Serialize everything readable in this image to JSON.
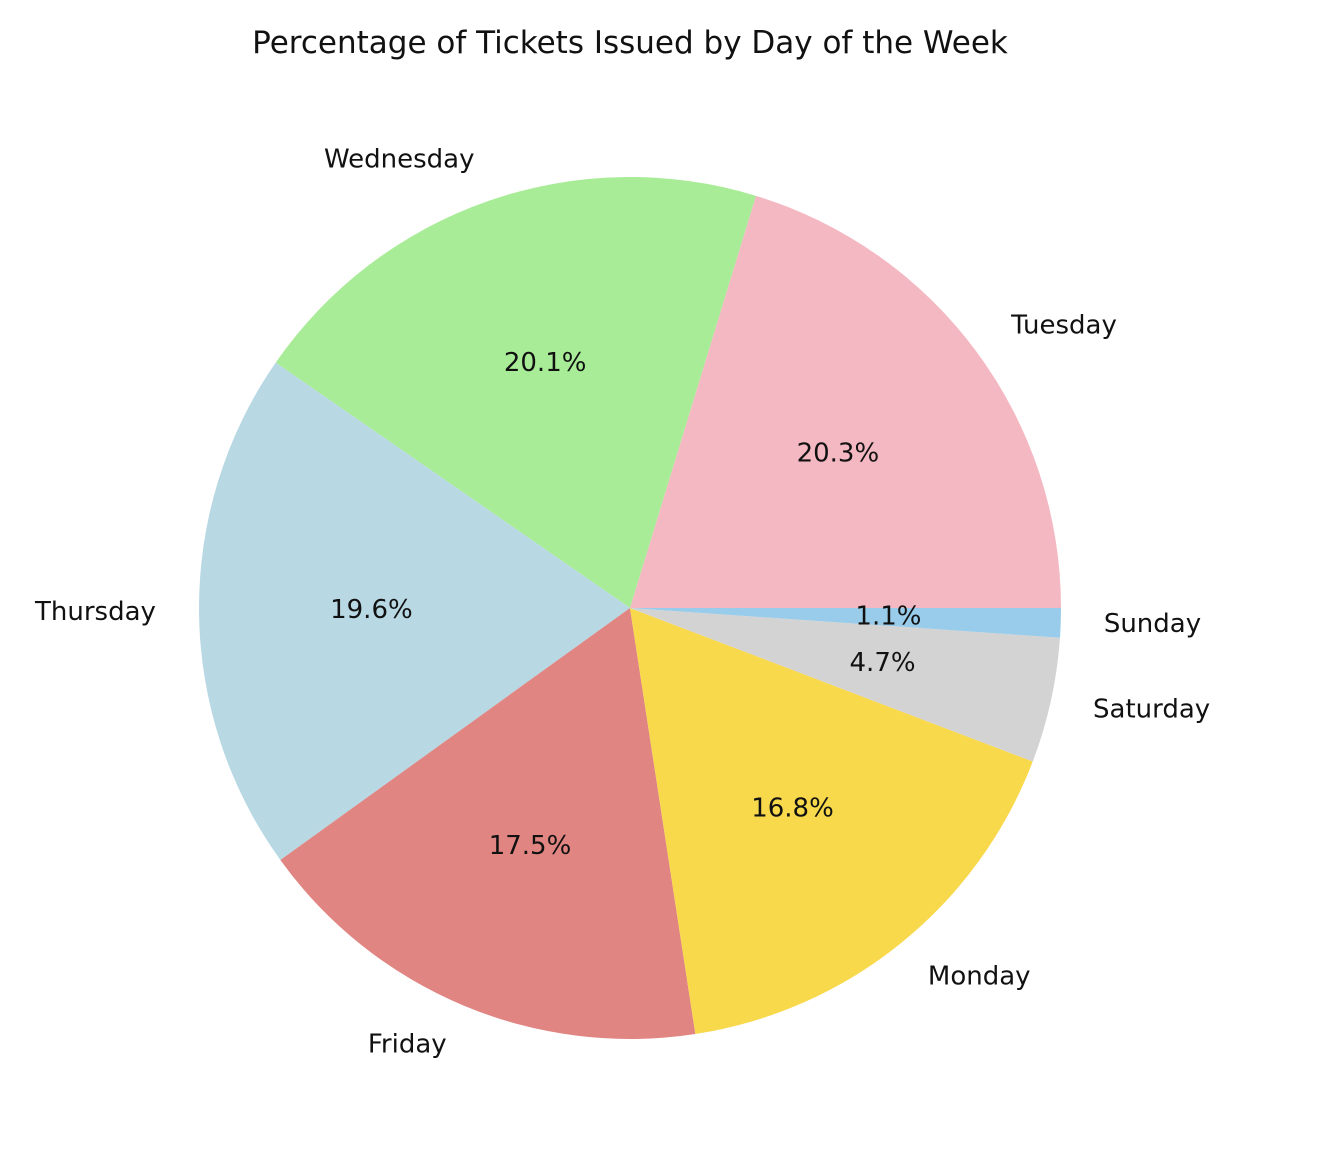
{
  "chart_data": {
    "type": "pie",
    "title": "Percentage of Tickets Issued by Day of the Week",
    "start_angle_deg": 0,
    "direction": "counterclockwise",
    "slices": [
      {
        "label": "Tuesday",
        "value": 20.3,
        "display": "20.3%",
        "color": "#F4B8C2"
      },
      {
        "label": "Wednesday",
        "value": 20.1,
        "display": "20.1%",
        "color": "#A8EC97"
      },
      {
        "label": "Thursday",
        "value": 19.6,
        "display": "19.6%",
        "color": "#B8D8E4"
      },
      {
        "label": "Friday",
        "value": 17.5,
        "display": "17.5%",
        "color": "#E08581"
      },
      {
        "label": "Monday",
        "value": 16.8,
        "display": "16.8%",
        "color": "#F9D94C"
      },
      {
        "label": "Saturday",
        "value": 4.7,
        "display": "4.7%",
        "color": "#D3D3D3"
      },
      {
        "label": "Sunday",
        "value": 1.1,
        "display": "1.1%",
        "color": "#98CCEA"
      }
    ]
  }
}
